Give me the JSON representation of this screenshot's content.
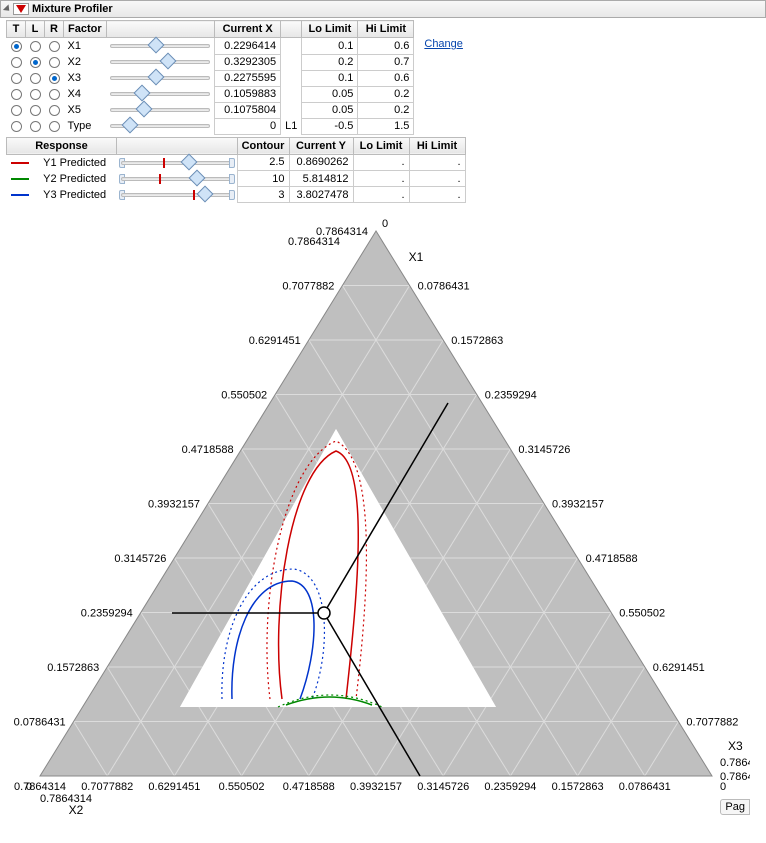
{
  "header": {
    "title": "Mixture Profiler"
  },
  "link_change": "Change",
  "factors": {
    "columns": {
      "T": "T",
      "L": "L",
      "R": "R",
      "Factor": "Factor",
      "CurrentX": "Current X",
      "Lo": "Lo Limit",
      "Hi": "Hi Limit"
    },
    "rows": [
      {
        "t": true,
        "l": false,
        "r": false,
        "name": "X1",
        "cx": "0.2296414",
        "lo": "0.1",
        "hi": "0.6",
        "thumb": 40,
        "extra": ""
      },
      {
        "t": false,
        "l": true,
        "r": false,
        "name": "X2",
        "cx": "0.3292305",
        "lo": "0.2",
        "hi": "0.7",
        "thumb": 52,
        "extra": ""
      },
      {
        "t": false,
        "l": false,
        "r": true,
        "name": "X3",
        "cx": "0.2275595",
        "lo": "0.1",
        "hi": "0.6",
        "thumb": 40,
        "extra": ""
      },
      {
        "t": false,
        "l": false,
        "r": false,
        "name": "X4",
        "cx": "0.1059883",
        "lo": "0.05",
        "hi": "0.2",
        "thumb": 26,
        "extra": ""
      },
      {
        "t": false,
        "l": false,
        "r": false,
        "name": "X5",
        "cx": "0.1075804",
        "lo": "0.05",
        "hi": "0.2",
        "thumb": 28,
        "extra": ""
      },
      {
        "t": false,
        "l": false,
        "r": false,
        "name": "Type",
        "cx": "0",
        "lo": "-0.5",
        "hi": "1.5",
        "thumb": 14,
        "extra": "L1"
      }
    ]
  },
  "responses": {
    "columns": {
      "Response": "Response",
      "Contour": "Contour",
      "CurrentY": "Current Y",
      "Lo": "Lo Limit",
      "Hi": "Hi Limit"
    },
    "rows": [
      {
        "name": "Y1 Predicted",
        "color": "#cc0000",
        "contour": "2.5",
        "cy": "0.8690262",
        "lo": ".",
        "hi": ".",
        "thumb": 62,
        "tick": 42
      },
      {
        "name": "Y2 Predicted",
        "color": "#008800",
        "contour": "10",
        "cy": "5.814812",
        "lo": ".",
        "hi": ".",
        "thumb": 70,
        "tick": 38
      },
      {
        "name": "Y3 Predicted",
        "color": "#0033cc",
        "contour": "3",
        "cy": "3.8027478",
        "lo": ".",
        "hi": ".",
        "thumb": 78,
        "tick": 72
      }
    ]
  },
  "ternary": {
    "apex_labels": {
      "top": "X1",
      "left": "X2",
      "right": "X3",
      "zero": "0"
    },
    "tick_values": [
      "0.0786431",
      "0.1572863",
      "0.2359294",
      "0.3145726",
      "0.3932157",
      "0.4718588",
      "0.550502",
      "0.6291451",
      "0.7077882",
      "0.7864314"
    ],
    "apex_value": "0.7864314",
    "outer_fill": "#bfbfbf",
    "grid_color": "#dcdcdc",
    "crosshair_color": "#000000",
    "page_tab": "Pag"
  }
}
